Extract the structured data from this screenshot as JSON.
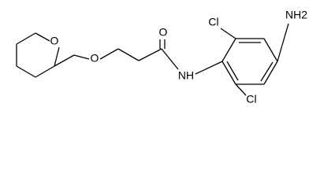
{
  "atoms": {
    "ring_oxygen": "O",
    "ether_oxygen": "O",
    "carbonyl_oxygen": "O",
    "amide_nitrogen": "NH",
    "amine": "NH2",
    "chlorine_top": "Cl",
    "chlorine_bottom": "Cl"
  }
}
